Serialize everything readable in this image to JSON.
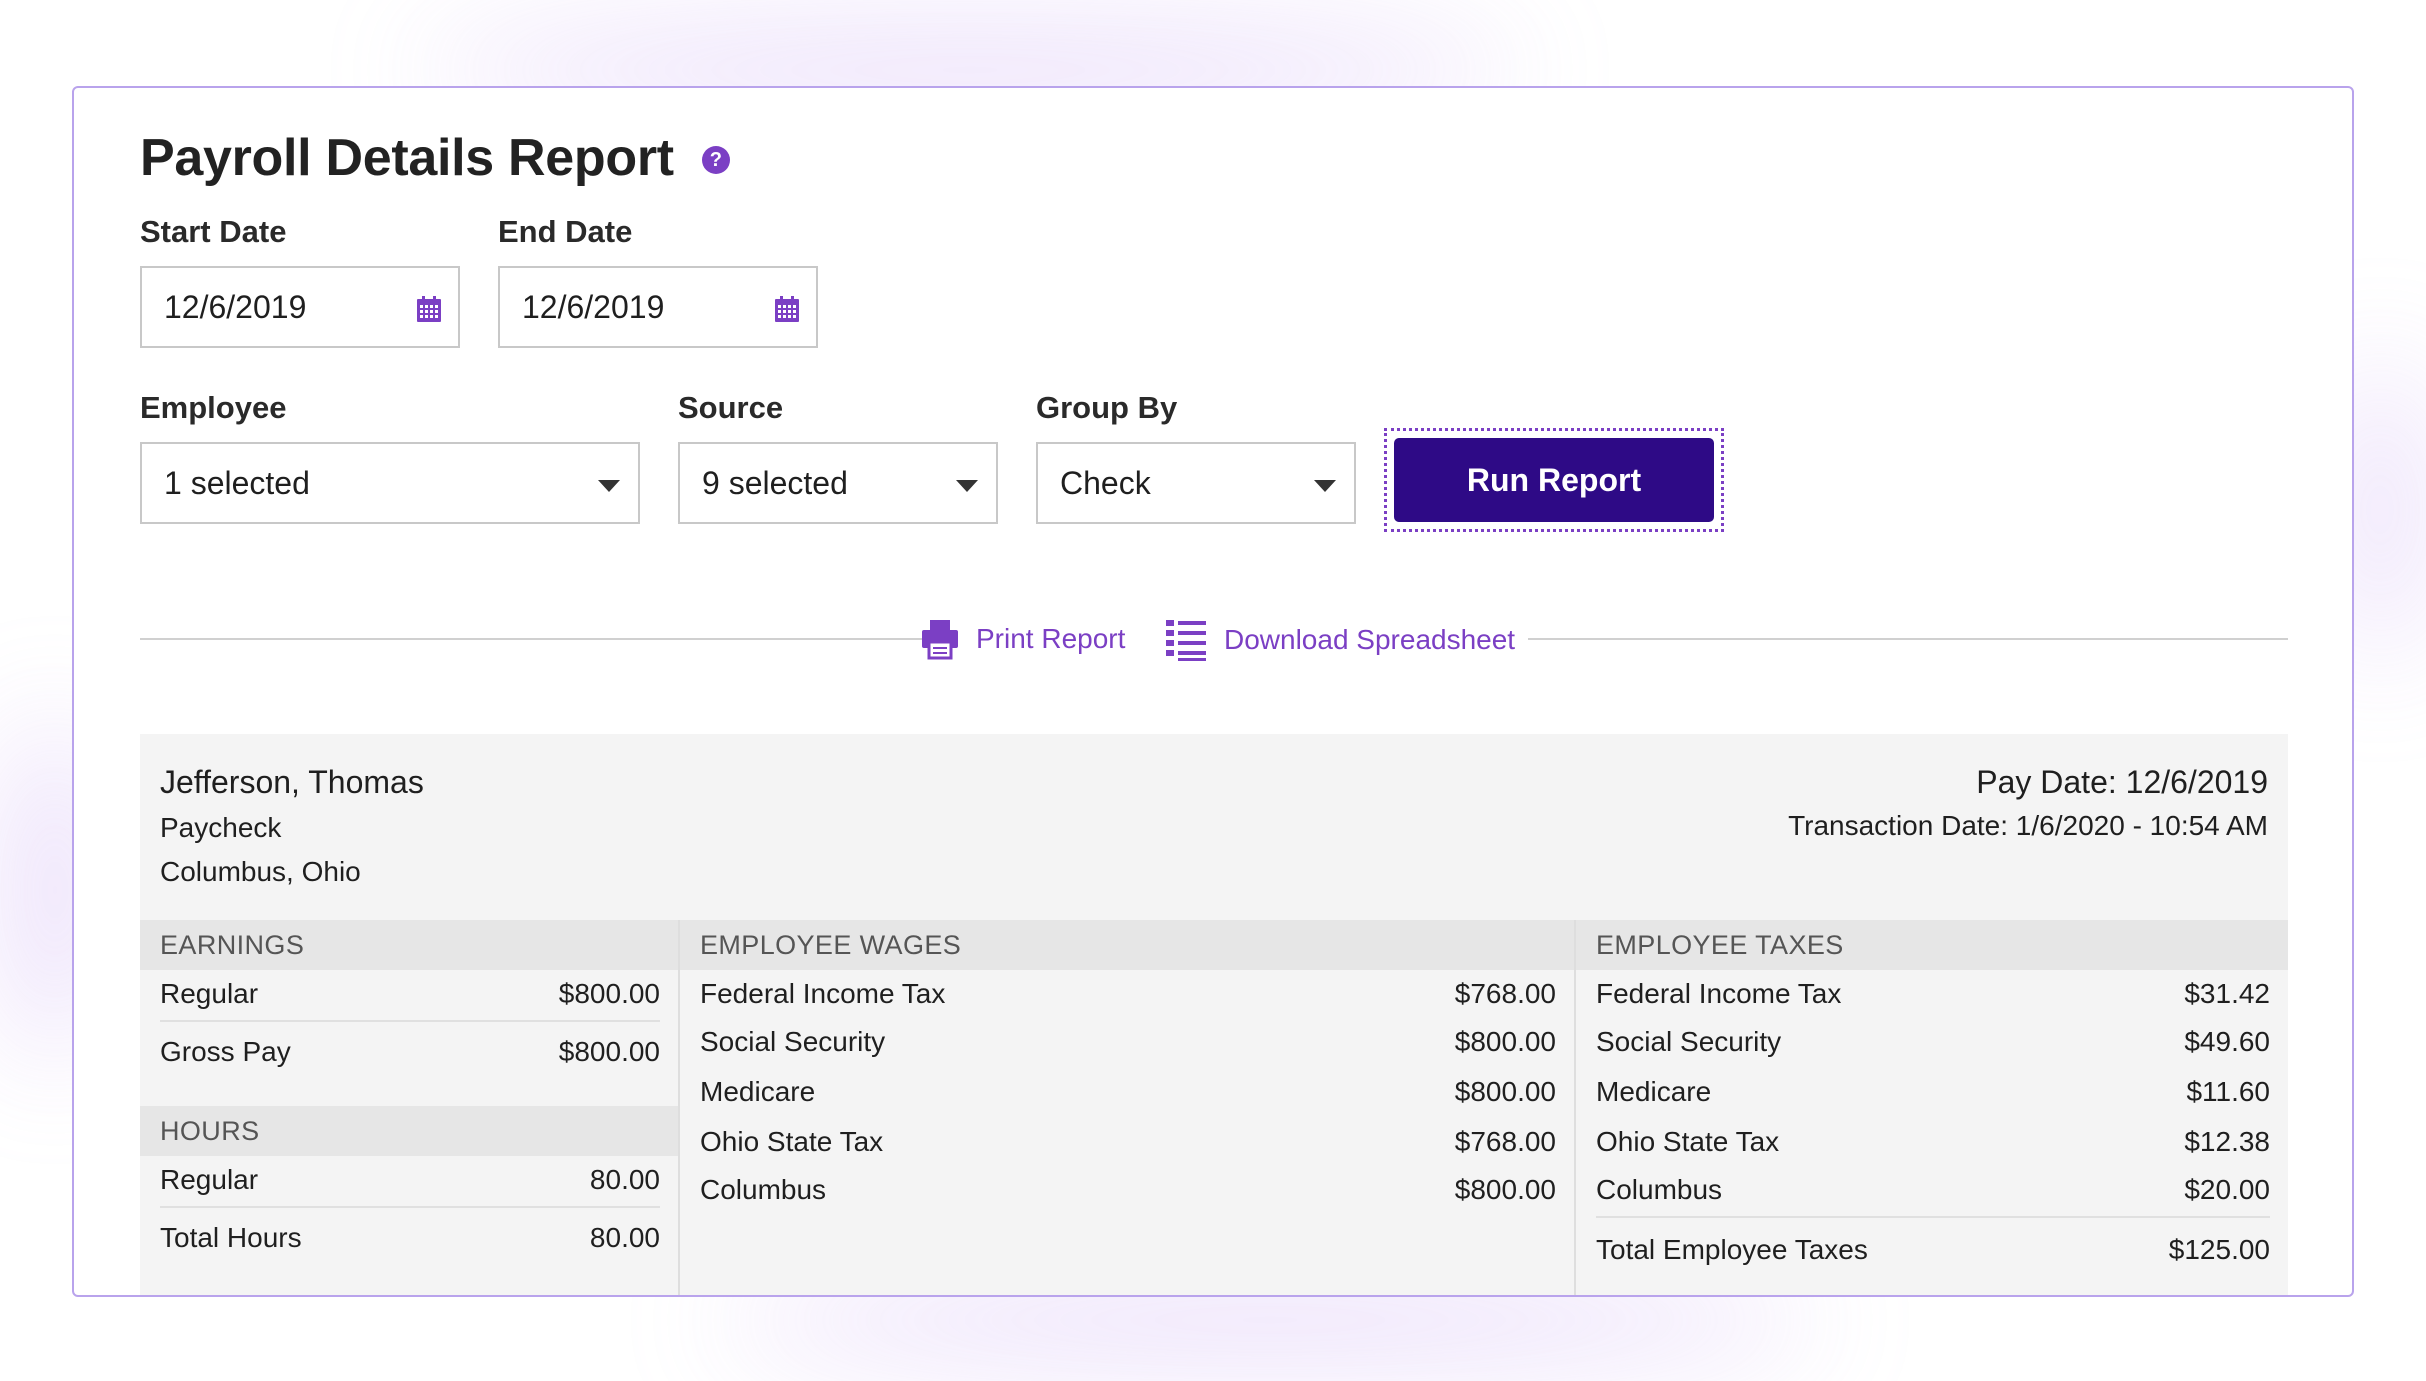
{
  "title": "Payroll Details Report",
  "help_icon_glyph": "?",
  "dates": {
    "start_label": "Start Date",
    "start_value": "12/6/2019",
    "end_label": "End Date",
    "end_value": "12/6/2019"
  },
  "filters": {
    "employee_label": "Employee",
    "employee_value": "1 selected",
    "source_label": "Source",
    "source_value": "9 selected",
    "group_by_label": "Group By",
    "group_by_value": "Check"
  },
  "run_button": "Run Report",
  "actions": {
    "print": "Print Report",
    "download": "Download Spreadsheet"
  },
  "report": {
    "employee_name": "Jefferson, Thomas",
    "check_type": "Paycheck",
    "location": "Columbus, Ohio",
    "pay_date": "Pay Date: 12/6/2019",
    "transaction_date": "Transaction Date: 1/6/2020 - 10:54 AM",
    "earnings": {
      "heading": "EARNINGS",
      "rows": [
        {
          "label": "Regular",
          "value": "$800.00"
        },
        {
          "label": "Gross Pay",
          "value": "$800.00"
        }
      ]
    },
    "hours": {
      "heading": "HOURS",
      "rows": [
        {
          "label": "Regular",
          "value": "80.00"
        },
        {
          "label": "Total Hours",
          "value": "80.00"
        }
      ]
    },
    "wages": {
      "heading": "EMPLOYEE WAGES",
      "rows": [
        {
          "label": "Federal Income Tax",
          "value": "$768.00"
        },
        {
          "label": "Social Security",
          "value": "$800.00"
        },
        {
          "label": "Medicare",
          "value": "$800.00"
        },
        {
          "label": "Ohio State Tax",
          "value": "$768.00"
        },
        {
          "label": "Columbus",
          "value": "$800.00"
        }
      ]
    },
    "taxes": {
      "heading": "EMPLOYEE TAXES",
      "rows": [
        {
          "label": "Federal Income Tax",
          "value": "$31.42"
        },
        {
          "label": "Social Security",
          "value": "$49.60"
        },
        {
          "label": "Medicare",
          "value": "$11.60"
        },
        {
          "label": "Ohio State Tax",
          "value": "$12.38"
        },
        {
          "label": "Columbus",
          "value": "$20.00"
        }
      ],
      "total_label": "Total Employee Taxes",
      "total_value": "$125.00"
    }
  },
  "colors": {
    "accent": "#7b3fc4",
    "primary_button": "#2e0a86",
    "card_border": "#b9a3ec"
  },
  "icons": [
    "help-icon",
    "calendar-icon",
    "chevron-down-icon",
    "printer-icon",
    "spreadsheet-icon"
  ]
}
